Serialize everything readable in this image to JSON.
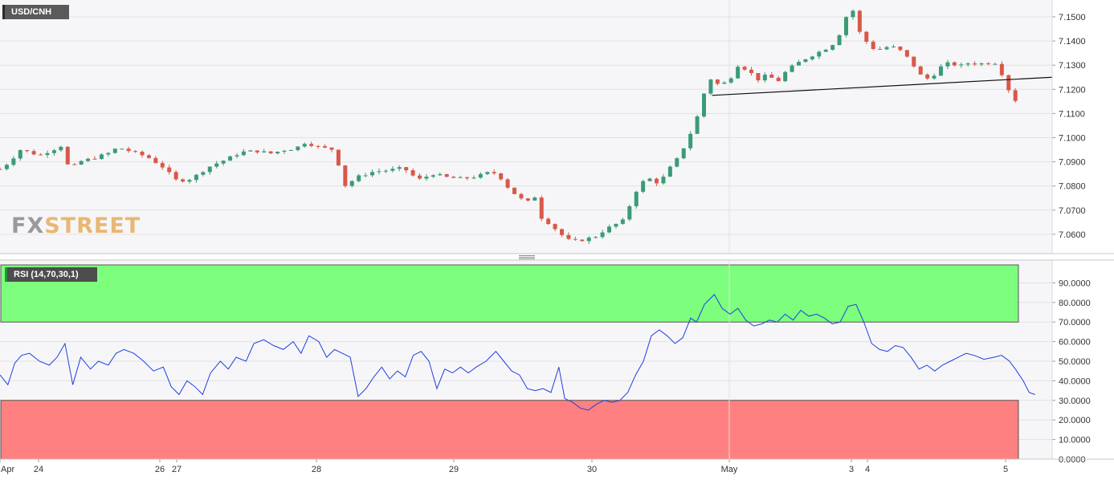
{
  "chart_data": [
    {
      "type": "candlestick",
      "symbol": "USD/CNH",
      "ylim": [
        7.0525,
        7.1565
      ],
      "y_ticks": [
        "7.1500",
        "7.1400",
        "7.1300",
        "7.1200",
        "7.1100",
        "7.1000",
        "7.0900",
        "7.0800",
        "7.0700",
        "7.0600"
      ],
      "x_ticks": [
        "Apr",
        "24",
        "26",
        "27",
        "28",
        "29",
        "30",
        "May",
        "3",
        "4",
        "5"
      ],
      "grid": true,
      "trendline": {
        "from": [
          0.536,
          7.1175
        ],
        "to": [
          1.0,
          7.125
        ]
      },
      "path": [
        [
          0.0,
          7.087
        ],
        [
          0.01,
          7.09
        ],
        [
          0.02,
          7.095
        ],
        [
          0.03,
          7.094
        ],
        [
          0.04,
          7.0925
        ],
        [
          0.05,
          7.0945
        ],
        [
          0.06,
          7.096
        ],
        [
          0.065,
          7.0975
        ],
        [
          0.07,
          7.086
        ],
        [
          0.08,
          7.09
        ],
        [
          0.095,
          7.0915
        ],
        [
          0.11,
          7.0935
        ],
        [
          0.12,
          7.096
        ],
        [
          0.135,
          7.094
        ],
        [
          0.15,
          7.092
        ],
        [
          0.165,
          7.088
        ],
        [
          0.18,
          7.082
        ],
        [
          0.195,
          7.083
        ],
        [
          0.205,
          7.086
        ],
        [
          0.215,
          7.0885
        ],
        [
          0.23,
          7.091
        ],
        [
          0.245,
          7.094
        ],
        [
          0.26,
          7.0945
        ],
        [
          0.275,
          7.0935
        ],
        [
          0.29,
          7.095
        ],
        [
          0.3,
          7.0955
        ],
        [
          0.31,
          7.098
        ],
        [
          0.325,
          7.096
        ],
        [
          0.34,
          7.095
        ],
        [
          0.35,
          7.08
        ],
        [
          0.365,
          7.084
        ],
        [
          0.38,
          7.086
        ],
        [
          0.395,
          7.0865
        ],
        [
          0.41,
          7.0875
        ],
        [
          0.425,
          7.0825
        ],
        [
          0.44,
          7.085
        ],
        [
          0.455,
          7.0835
        ],
        [
          0.47,
          7.083
        ],
        [
          0.485,
          7.084
        ],
        [
          0.5,
          7.086
        ],
        [
          0.51,
          7.083
        ],
        [
          0.515,
          7.08
        ],
        [
          0.525,
          7.076
        ],
        [
          0.535,
          7.073
        ],
        [
          0.545,
          7.076
        ],
        [
          0.55,
          7.067
        ],
        [
          0.56,
          7.064
        ],
        [
          0.57,
          7.06
        ],
        [
          0.58,
          7.057
        ],
        [
          0.59,
          7.0575
        ],
        [
          0.605,
          7.059
        ],
        [
          0.615,
          7.062
        ],
        [
          0.625,
          7.064
        ],
        [
          0.635,
          7.066
        ],
        [
          0.64,
          7.072
        ],
        [
          0.65,
          7.081
        ],
        [
          0.66,
          7.083
        ],
        [
          0.67,
          7.081
        ],
        [
          0.68,
          7.087
        ],
        [
          0.69,
          7.092
        ],
        [
          0.7,
          7.1
        ],
        [
          0.71,
          7.11
        ],
        [
          0.72,
          7.125
        ],
        [
          0.73,
          7.122
        ],
        [
          0.74,
          7.123
        ],
        [
          0.75,
          7.13
        ],
        [
          0.76,
          7.128
        ],
        [
          0.77,
          7.124
        ],
        [
          0.78,
          7.126
        ],
        [
          0.79,
          7.123
        ],
        [
          0.8,
          7.128
        ],
        [
          0.815,
          7.132
        ],
        [
          0.83,
          7.135
        ],
        [
          0.845,
          7.138
        ],
        [
          0.855,
          7.144
        ],
        [
          0.86,
          7.15
        ],
        [
          0.865,
          7.155
        ],
        [
          0.875,
          7.142
        ],
        [
          0.89,
          7.136
        ],
        [
          0.905,
          7.138
        ],
        [
          0.915,
          7.136
        ],
        [
          0.925,
          7.132
        ],
        [
          0.935,
          7.126
        ],
        [
          0.945,
          7.124
        ],
        [
          0.955,
          7.129
        ],
        [
          0.965,
          7.131
        ],
        [
          0.975,
          7.1295
        ],
        [
          0.985,
          7.131
        ],
        [
          0.995,
          7.1305
        ],
        [
          1.005,
          7.131
        ],
        [
          1.015,
          7.131
        ],
        [
          1.02,
          7.124
        ],
        [
          1.025,
          7.12
        ],
        [
          1.032,
          7.1155
        ]
      ]
    },
    {
      "type": "line",
      "indicator": "RSI (14,70,30,1)",
      "ylim": [
        0,
        100
      ],
      "y_ticks": [
        "90.0000",
        "80.0000",
        "70.0000",
        "60.0000",
        "50.0000",
        "40.0000",
        "30.0000",
        "20.0000",
        "10.0000",
        "0.0000"
      ],
      "overbought": 70,
      "oversold": 30,
      "colors": {
        "overbought": "#7dff7d",
        "oversold": "#ff8080",
        "line": "#1f3fe0",
        "bull": "#3a9b77",
        "bear": "#d95848"
      },
      "path": [
        [
          0.0,
          43
        ],
        [
          0.008,
          38
        ],
        [
          0.015,
          49
        ],
        [
          0.022,
          53
        ],
        [
          0.03,
          54
        ],
        [
          0.04,
          50
        ],
        [
          0.05,
          48
        ],
        [
          0.058,
          52
        ],
        [
          0.066,
          59
        ],
        [
          0.074,
          38
        ],
        [
          0.082,
          52
        ],
        [
          0.092,
          46
        ],
        [
          0.1,
          50
        ],
        [
          0.11,
          48
        ],
        [
          0.118,
          54
        ],
        [
          0.126,
          56
        ],
        [
          0.136,
          54
        ],
        [
          0.146,
          50
        ],
        [
          0.156,
          45
        ],
        [
          0.166,
          47
        ],
        [
          0.174,
          37
        ],
        [
          0.182,
          33
        ],
        [
          0.19,
          40
        ],
        [
          0.198,
          37
        ],
        [
          0.206,
          33
        ],
        [
          0.214,
          44
        ],
        [
          0.224,
          50
        ],
        [
          0.232,
          46
        ],
        [
          0.24,
          52
        ],
        [
          0.25,
          50
        ],
        [
          0.258,
          59
        ],
        [
          0.268,
          61
        ],
        [
          0.278,
          58
        ],
        [
          0.288,
          56
        ],
        [
          0.298,
          60
        ],
        [
          0.306,
          54
        ],
        [
          0.314,
          63
        ],
        [
          0.324,
          60
        ],
        [
          0.332,
          52
        ],
        [
          0.34,
          56
        ],
        [
          0.348,
          54
        ],
        [
          0.356,
          52
        ],
        [
          0.364,
          32
        ],
        [
          0.372,
          36
        ],
        [
          0.38,
          42
        ],
        [
          0.388,
          47
        ],
        [
          0.396,
          41
        ],
        [
          0.404,
          45
        ],
        [
          0.412,
          42
        ],
        [
          0.42,
          53
        ],
        [
          0.428,
          55
        ],
        [
          0.436,
          50
        ],
        [
          0.444,
          36
        ],
        [
          0.452,
          46
        ],
        [
          0.46,
          44
        ],
        [
          0.468,
          47
        ],
        [
          0.476,
          44
        ],
        [
          0.484,
          47
        ],
        [
          0.494,
          50
        ],
        [
          0.504,
          55
        ],
        [
          0.512,
          50
        ],
        [
          0.52,
          45
        ],
        [
          0.528,
          43
        ],
        [
          0.536,
          36
        ],
        [
          0.544,
          35
        ],
        [
          0.552,
          36
        ],
        [
          0.56,
          34
        ],
        [
          0.568,
          47
        ],
        [
          0.574,
          31
        ],
        [
          0.582,
          29
        ],
        [
          0.59,
          26
        ],
        [
          0.598,
          25
        ],
        [
          0.606,
          28
        ],
        [
          0.614,
          30
        ],
        [
          0.622,
          29
        ],
        [
          0.63,
          30
        ],
        [
          0.638,
          34
        ],
        [
          0.646,
          43
        ],
        [
          0.654,
          50
        ],
        [
          0.662,
          63
        ],
        [
          0.67,
          66
        ],
        [
          0.678,
          63
        ],
        [
          0.686,
          59
        ],
        [
          0.694,
          62
        ],
        [
          0.702,
          72
        ],
        [
          0.708,
          70
        ],
        [
          0.716,
          79
        ],
        [
          0.726,
          84
        ],
        [
          0.734,
          77
        ],
        [
          0.742,
          74
        ],
        [
          0.75,
          77
        ],
        [
          0.758,
          71
        ],
        [
          0.766,
          68
        ],
        [
          0.774,
          69
        ],
        [
          0.782,
          71
        ],
        [
          0.79,
          70
        ],
        [
          0.798,
          74
        ],
        [
          0.806,
          71
        ],
        [
          0.814,
          76
        ],
        [
          0.822,
          73
        ],
        [
          0.83,
          74
        ],
        [
          0.838,
          72
        ],
        [
          0.846,
          69
        ],
        [
          0.854,
          70
        ],
        [
          0.862,
          78
        ],
        [
          0.87,
          79
        ],
        [
          0.878,
          70
        ],
        [
          0.886,
          59
        ],
        [
          0.894,
          56
        ],
        [
          0.902,
          55
        ],
        [
          0.91,
          58
        ],
        [
          0.918,
          57
        ],
        [
          0.926,
          52
        ],
        [
          0.934,
          46
        ],
        [
          0.942,
          48
        ],
        [
          0.95,
          45
        ],
        [
          0.958,
          48
        ],
        [
          0.966,
          50
        ],
        [
          0.974,
          52
        ],
        [
          0.982,
          54
        ],
        [
          0.99,
          53
        ],
        [
          1.0,
          51
        ],
        [
          1.01,
          52
        ],
        [
          1.018,
          53
        ],
        [
          1.026,
          50
        ],
        [
          1.032,
          46
        ],
        [
          1.04,
          40
        ],
        [
          1.046,
          34
        ],
        [
          1.052,
          33
        ]
      ]
    }
  ],
  "labels": {
    "title": "USD/CNH",
    "rsi": "RSI (14,70,30,1)",
    "logo_fx": "FX",
    "logo_street": "STREET"
  }
}
